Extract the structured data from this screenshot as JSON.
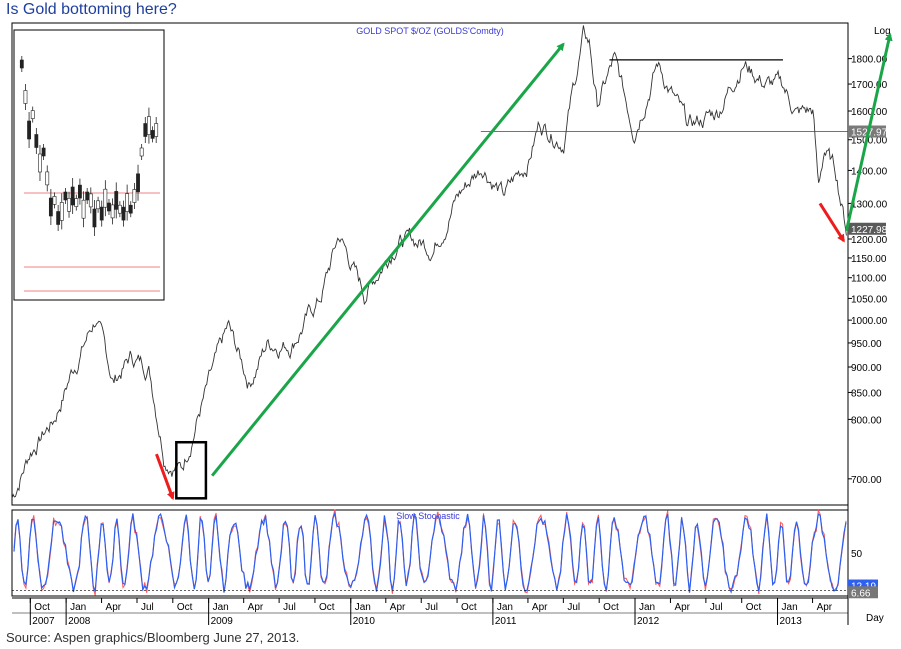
{
  "headline": "Is Gold bottoming here?",
  "source": "Source: Aspen graphics/Bloomberg June 27, 2013.",
  "chart_data": [
    {
      "type": "line",
      "title": "GOLD  SPOT  $/OZ  (GOLDS'Comdty)",
      "scale": "log",
      "scale_label": "Log",
      "ylim": [
        660,
        1950
      ],
      "y_ticks": [
        "1800.00",
        "1700.00",
        "1600.00",
        "1500.00",
        "1400.00",
        "1300.00",
        "1200.00",
        "1150.00",
        "1100.00",
        "1050.00",
        "1000.00",
        "950.00",
        "900.00",
        "850.00",
        "800.00",
        "700.00"
      ],
      "y_tick_values": [
        1800,
        1700,
        1600,
        1500,
        1400,
        1300,
        1200,
        1150,
        1100,
        1050,
        1000,
        950,
        900,
        850,
        800,
        700
      ],
      "last_labels": [
        {
          "text": "1527.97",
          "value": 1527.97
        },
        {
          "text": "1227.98",
          "value": 1227.98
        }
      ],
      "resistance_level": 1795,
      "support_level": 1527.97,
      "series": [
        {
          "x": [
            "2007-08-15",
            "2007-10-01",
            "2007-12-01",
            "2008-01-15",
            "2008-03-17",
            "2008-05-01",
            "2008-06-15",
            "2008-08-01",
            "2008-09-10",
            "2008-10-24",
            "2008-12-01",
            "2009-02-20",
            "2009-04-15",
            "2009-06-01",
            "2009-08-01",
            "2009-10-15",
            "2009-12-02",
            "2010-02-05",
            "2010-05-01",
            "2010-07-01",
            "2010-08-01",
            "2010-10-01",
            "2010-12-07",
            "2011-01-28",
            "2011-04-01",
            "2011-05-01",
            "2011-07-01",
            "2011-08-22",
            "2011-09-06",
            "2011-09-26",
            "2011-11-08",
            "2011-12-29",
            "2012-02-28",
            "2012-05-16",
            "2012-08-01",
            "2012-10-04",
            "2012-12-01",
            "2013-01-15",
            "2013-02-20",
            "2013-04-02",
            "2013-04-16",
            "2013-05-01",
            "2013-06-01",
            "2013-06-27"
          ],
          "values": [
            670,
            745,
            800,
            890,
            1005,
            870,
            920,
            900,
            740,
            715,
            800,
            980,
            870,
            950,
            950,
            1050,
            1210,
            1060,
            1200,
            1190,
            1180,
            1320,
            1420,
            1320,
            1430,
            1560,
            1500,
            1890,
            1860,
            1620,
            1790,
            1540,
            1780,
            1540,
            1600,
            1790,
            1700,
            1690,
            1590,
            1600,
            1340,
            1470,
            1390,
            1228
          ]
        }
      ]
    },
    {
      "type": "line",
      "title": "Slow  Stochastic",
      "ylim": [
        0,
        100
      ],
      "y_ticks": [
        "50"
      ],
      "y_tick_values": [
        50
      ],
      "last_labels": [
        {
          "text": "12.19",
          "value": 12.19
        },
        {
          "text": "6.66",
          "value": 6.66
        }
      ],
      "series": [
        {
          "color": "#ff5a5a"
        },
        {
          "color": "#2d5ff0"
        }
      ]
    }
  ],
  "x_axis": {
    "tick_labels": [
      "Oct",
      "Jan",
      "Apr",
      "Jul",
      "Oct",
      "Jan",
      "Apr",
      "Jul",
      "Oct",
      "Jan",
      "Apr",
      "Jul",
      "Oct",
      "Jan",
      "Apr",
      "Jul",
      "Oct",
      "Jan",
      "Apr",
      "Jul",
      "Oct",
      "Jan",
      "Apr"
    ],
    "tick_dates": [
      "2007-10-01",
      "2008-01-01",
      "2008-04-01",
      "2008-07-01",
      "2008-10-01",
      "2009-01-01",
      "2009-04-01",
      "2009-07-01",
      "2009-10-01",
      "2010-01-01",
      "2010-04-01",
      "2010-07-01",
      "2010-10-01",
      "2011-01-01",
      "2011-04-01",
      "2011-07-01",
      "2011-10-01",
      "2012-01-01",
      "2012-04-01",
      "2012-07-01",
      "2012-10-01",
      "2013-01-01",
      "2013-04-01"
    ],
    "years": [
      "2007",
      "2008",
      "2009",
      "2010",
      "2011",
      "2012",
      "2013"
    ],
    "year_dates": [
      "2007-10-01",
      "2008-01-01",
      "2009-01-01",
      "2010-01-01",
      "2011-01-01",
      "2012-01-01",
      "2013-01-01"
    ],
    "unit_label": "Day",
    "range": [
      "2007-08-15",
      "2013-07-01"
    ]
  },
  "annotations": {
    "arrow_color_up": "#1aa648",
    "arrow_color_down": "#ee1c1c",
    "box_color": "#000000",
    "inset_support_color": "#f08080"
  }
}
